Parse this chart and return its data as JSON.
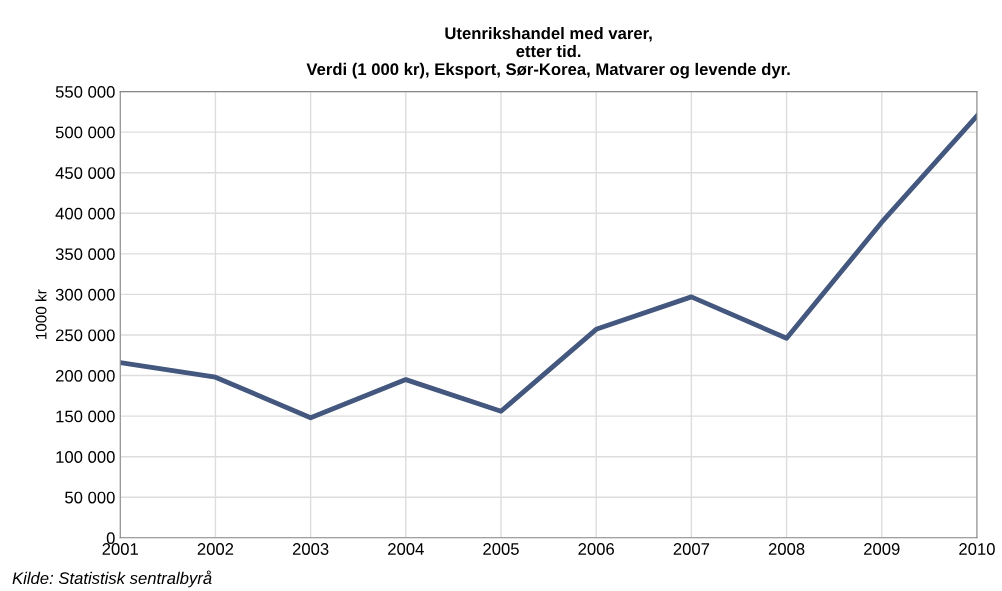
{
  "chart_data": {
    "type": "line",
    "title": "Utenrikshandel med varer,\netter tid.\nVerdi (1 000 kr), Eksport, Sør-Korea, Matvarer og levende dyr.",
    "ylabel": "1000 kr",
    "x": [
      2001,
      2002,
      2003,
      2004,
      2005,
      2006,
      2007,
      2008,
      2009,
      2010
    ],
    "series": [
      {
        "color": "#44587f",
        "values": [
          216000,
          198000,
          148000,
          195000,
          156000,
          257000,
          297000,
          246000,
          389000,
          520000
        ]
      }
    ],
    "xlim": [
      2001,
      2010
    ],
    "xticks": [
      2001,
      2002,
      2003,
      2004,
      2005,
      2006,
      2007,
      2008,
      2009,
      2010
    ],
    "ylim": [
      0,
      550000
    ],
    "yticks": [
      {
        "value": 0,
        "label": "0"
      },
      {
        "value": 50000,
        "label": "50 000"
      },
      {
        "value": 100000,
        "label": "100 000"
      },
      {
        "value": 150000,
        "label": "150 000"
      },
      {
        "value": 200000,
        "label": "200 000"
      },
      {
        "value": 250000,
        "label": "250 000"
      },
      {
        "value": 300000,
        "label": "300 000"
      },
      {
        "value": 350000,
        "label": "350 000"
      },
      {
        "value": 400000,
        "label": "400 000"
      },
      {
        "value": 450000,
        "label": "450 000"
      },
      {
        "value": 500000,
        "label": "500 000"
      },
      {
        "value": 550000,
        "label": "550 000"
      }
    ],
    "grid": true,
    "legend": false,
    "marker": "none",
    "line_style": "solid",
    "annotations": [
      "Kilde: Statistisk sentralbyrå"
    ]
  }
}
